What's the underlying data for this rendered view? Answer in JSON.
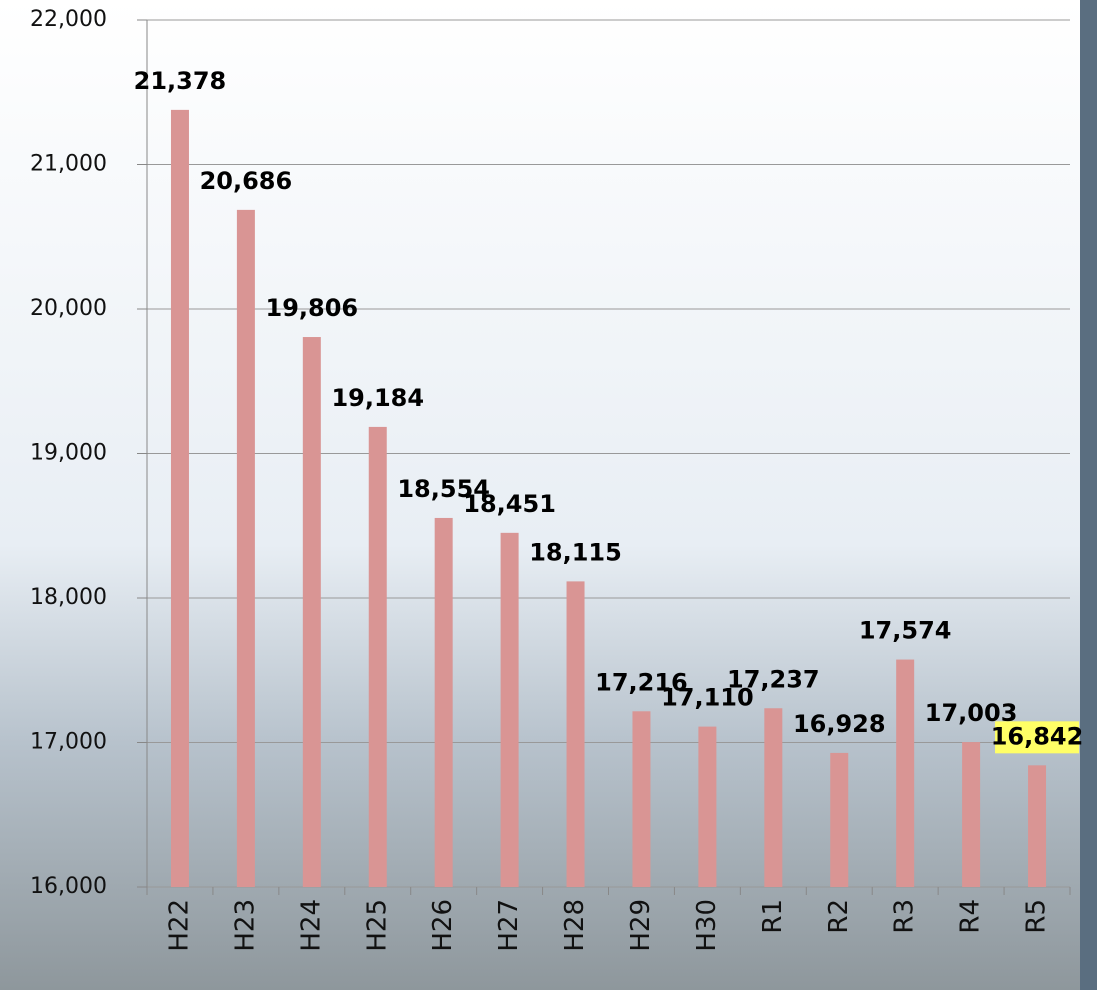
{
  "chart_data": {
    "type": "bar",
    "categories": [
      "H22",
      "H23",
      "H24",
      "H25",
      "H26",
      "H27",
      "H28",
      "H29",
      "H30",
      "R1",
      "R2",
      "R3",
      "R4",
      "R5"
    ],
    "values": [
      21378,
      20686,
      19806,
      19184,
      18554,
      18451,
      18115,
      17216,
      17110,
      17237,
      16928,
      17574,
      17003,
      16842
    ],
    "value_labels": [
      "21,378",
      "20,686",
      "19,806",
      "19,184",
      "18,554",
      "18,451",
      "18,115",
      "17,216",
      "17,110",
      "17,237",
      "16,928",
      "17,574",
      "17,003",
      "16,842"
    ],
    "color": "#d99594",
    "ylim": [
      16000,
      22000
    ],
    "yticks": [
      {
        "value": 16000,
        "label": "16,000"
      },
      {
        "value": 17000,
        "label": "17,000"
      },
      {
        "value": 18000,
        "label": "18,000"
      },
      {
        "value": 19000,
        "label": "19,000"
      },
      {
        "value": 20000,
        "label": "20,000"
      },
      {
        "value": 21000,
        "label": "21,000"
      },
      {
        "value": 22000,
        "label": "22,000"
      }
    ],
    "grid": true
  }
}
